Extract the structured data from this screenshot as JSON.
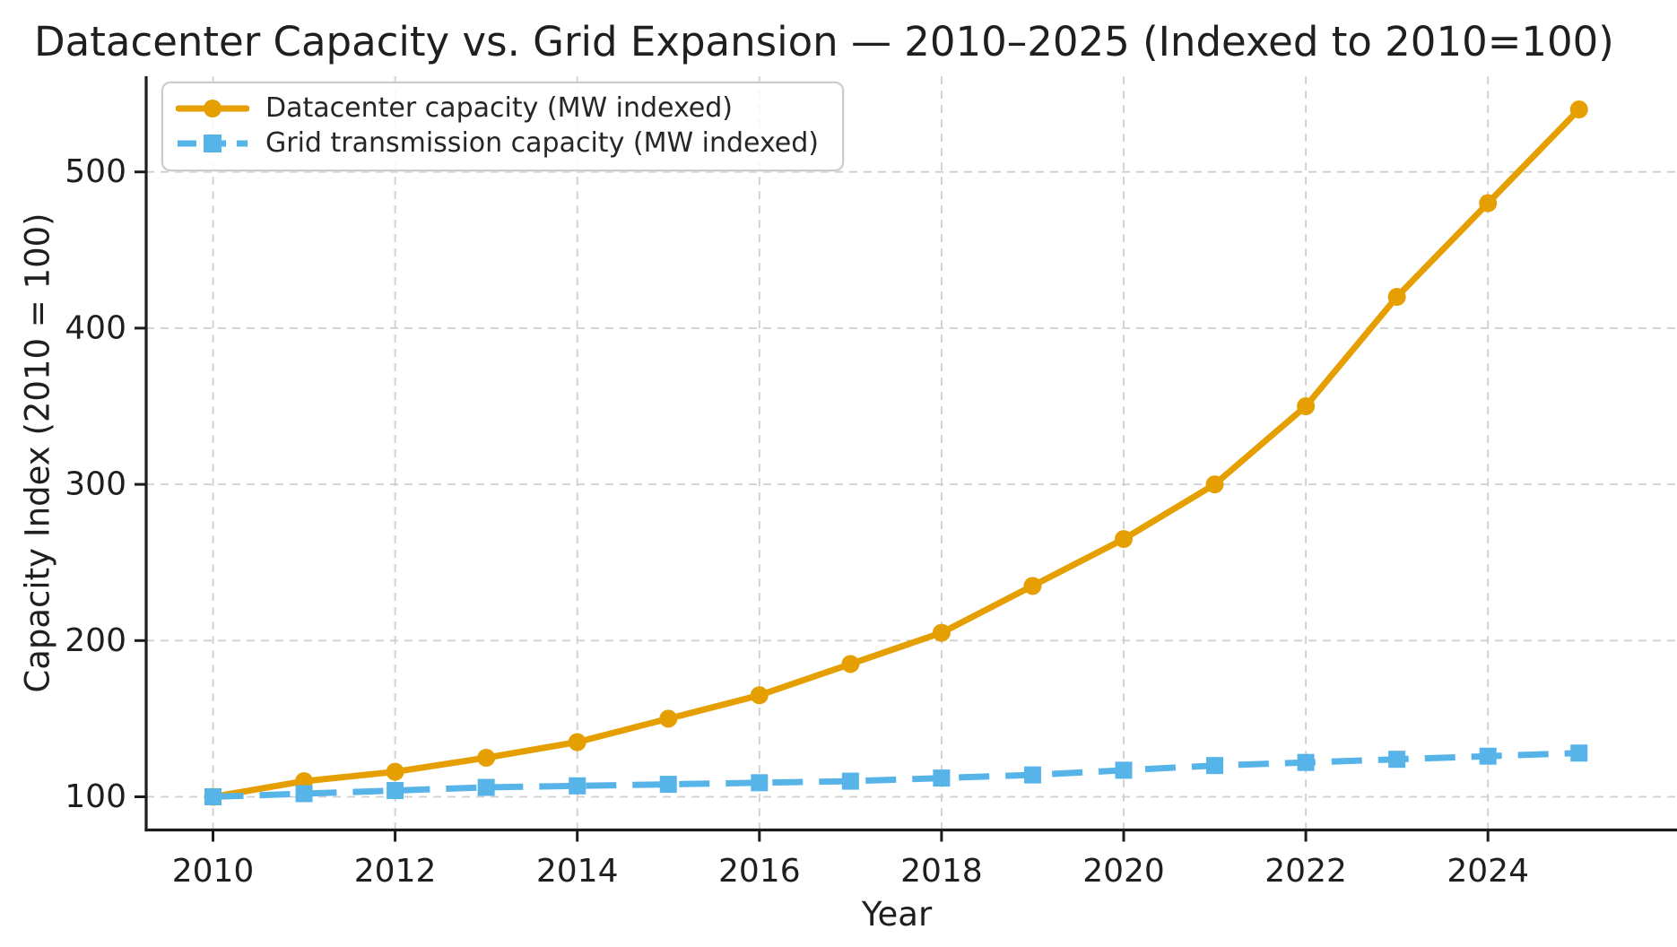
{
  "chart": {
    "title": "Datacenter Capacity vs. Grid Expansion — 2010–2025 (Indexed to 2010=100)",
    "xlabel": "Year",
    "ylabel": "Capacity Index (2010 = 100)"
  },
  "legend": {
    "items": [
      {
        "label": "Datacenter capacity (MW indexed)",
        "color": "#E69F00",
        "marker": "circle",
        "line_style": "solid"
      },
      {
        "label": "Grid transmission capacity (MW indexed)",
        "color": "#56B4E9",
        "marker": "square",
        "line_style": "dashed"
      }
    ]
  },
  "chart_data": {
    "type": "line",
    "title": "Datacenter Capacity vs. Grid Expansion — 2010–2025 (Indexed to 2010=100)",
    "xlabel": "Year",
    "ylabel": "Capacity Index (2010 = 100)",
    "x": [
      2010,
      2011,
      2012,
      2013,
      2014,
      2015,
      2016,
      2017,
      2018,
      2019,
      2020,
      2021,
      2022,
      2023,
      2024,
      2025
    ],
    "series": [
      {
        "name": "Datacenter capacity (MW indexed)",
        "color": "#E69F00",
        "line_style": "solid",
        "marker": "circle",
        "values": [
          100,
          110,
          116,
          125,
          135,
          150,
          165,
          185,
          205,
          235,
          265,
          300,
          350,
          420,
          480,
          540
        ]
      },
      {
        "name": "Grid transmission capacity (MW indexed)",
        "color": "#56B4E9",
        "line_style": "dashed",
        "marker": "square",
        "values": [
          100,
          102,
          104,
          106,
          107,
          108,
          109,
          110,
          112,
          114,
          117,
          120,
          122,
          124,
          126,
          128
        ]
      }
    ],
    "xticks": [
      2010,
      2012,
      2014,
      2016,
      2018,
      2020,
      2022,
      2024
    ],
    "yticks": [
      100,
      200,
      300,
      400,
      500
    ],
    "xlim": [
      2009.25,
      2026.2
    ],
    "ylim": [
      78,
      562
    ],
    "grid": true,
    "legend_position": "upper left"
  },
  "colors": {
    "grid": "#cfcfcf",
    "spine": "#1c1c1c",
    "text": "#1f1f1f",
    "legend_border": "#cccccc",
    "background": "#ffffff"
  }
}
